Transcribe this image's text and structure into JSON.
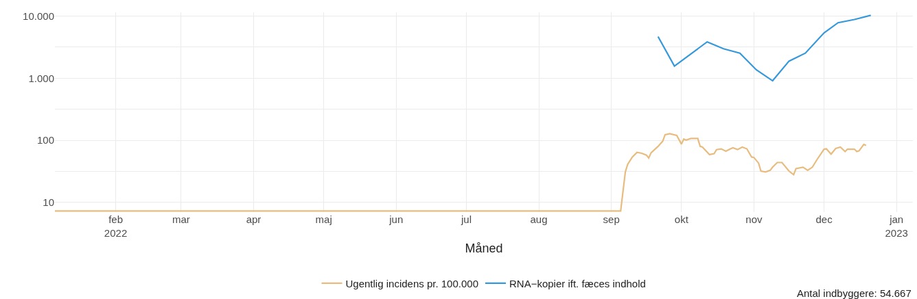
{
  "chart_data": {
    "type": "line",
    "xlabel": "Måned",
    "xlim": [
      "2022-01-06",
      "2023-01-08"
    ],
    "xticks": [
      {
        "value": "2022-02-01",
        "label": "feb\n2022"
      },
      {
        "value": "2022-03-01",
        "label": "mar"
      },
      {
        "value": "2022-04-01",
        "label": "apr"
      },
      {
        "value": "2022-05-01",
        "label": "maj"
      },
      {
        "value": "2022-06-01",
        "label": "jun"
      },
      {
        "value": "2022-07-01",
        "label": "jul"
      },
      {
        "value": "2022-08-01",
        "label": "aug"
      },
      {
        "value": "2022-09-01",
        "label": "sep"
      },
      {
        "value": "2022-10-01",
        "label": "okt"
      },
      {
        "value": "2022-11-01",
        "label": "nov"
      },
      {
        "value": "2022-12-01",
        "label": "dec"
      },
      {
        "value": "2023-01-01",
        "label": "jan\n2023"
      }
    ],
    "ylim": [
      7,
      11500
    ],
    "yticks": [
      {
        "value": 10,
        "label": "10"
      },
      {
        "value": 31.6,
        "label": null
      },
      {
        "value": 100,
        "label": "100"
      },
      {
        "value": 316,
        "label": null
      },
      {
        "value": 1000,
        "label": "1.000"
      },
      {
        "value": 3162,
        "label": null
      },
      {
        "value": 10000,
        "label": "10.000"
      }
    ],
    "log": "y",
    "grid": true,
    "legend": "bottom",
    "line_style": "solid",
    "marker": "none",
    "annotations": [
      "Antal indbyggere: 54.667"
    ],
    "series": [
      {
        "name": "Ugentlig incidens pr. 100.000",
        "color": "#e8bc7f",
        "x": [
          "2022-01-06",
          "2022-09-05",
          "2022-09-07",
          "2022-09-08",
          "2022-09-10",
          "2022-09-12",
          "2022-09-14",
          "2022-09-16",
          "2022-09-17",
          "2022-09-18",
          "2022-09-21",
          "2022-09-23",
          "2022-09-24",
          "2022-09-26",
          "2022-09-29",
          "2022-10-01",
          "2022-10-02",
          "2022-10-03",
          "2022-10-05",
          "2022-10-08",
          "2022-10-09",
          "2022-10-10",
          "2022-10-13",
          "2022-10-15",
          "2022-10-16",
          "2022-10-18",
          "2022-10-20",
          "2022-10-22",
          "2022-10-23",
          "2022-10-25",
          "2022-10-27",
          "2022-10-29",
          "2022-10-31",
          "2022-11-01",
          "2022-11-03",
          "2022-11-04",
          "2022-11-06",
          "2022-11-08",
          "2022-11-09",
          "2022-11-11",
          "2022-11-13",
          "2022-11-16",
          "2022-11-18",
          "2022-11-19",
          "2022-11-22",
          "2022-11-24",
          "2022-11-26",
          "2022-11-28",
          "2022-12-01",
          "2022-12-02",
          "2022-12-04",
          "2022-12-06",
          "2022-12-08",
          "2022-12-10",
          "2022-12-11",
          "2022-12-14",
          "2022-12-15",
          "2022-12-16",
          "2022-12-18",
          "2022-12-19"
        ],
        "values": [
          7.3,
          7.3,
          31,
          41,
          54,
          64,
          62,
          58,
          52,
          63,
          80,
          97,
          123,
          128,
          120,
          87,
          105,
          101,
          107,
          107,
          80,
          78,
          59,
          61,
          71,
          73,
          67,
          73,
          76,
          71,
          78,
          73,
          54,
          53,
          43,
          32,
          31,
          33,
          37,
          44,
          44,
          32,
          28,
          35,
          37,
          33,
          37,
          49,
          72,
          73,
          60,
          74,
          78,
          66,
          72,
          72,
          66,
          68,
          86,
          83
        ]
      },
      {
        "name": "RNA−kopier ift. fæces indhold",
        "color": "#3498db",
        "x": [
          "2022-09-21",
          "2022-09-28",
          "2022-10-12",
          "2022-10-19",
          "2022-10-26",
          "2022-11-02",
          "2022-11-09",
          "2022-11-16",
          "2022-11-23",
          "2022-12-01",
          "2022-12-07",
          "2022-12-14",
          "2022-12-21"
        ],
        "values": [
          4680,
          1570,
          3850,
          2980,
          2530,
          1370,
          910,
          1880,
          2530,
          5360,
          7830,
          8810,
          10300
        ]
      }
    ]
  }
}
